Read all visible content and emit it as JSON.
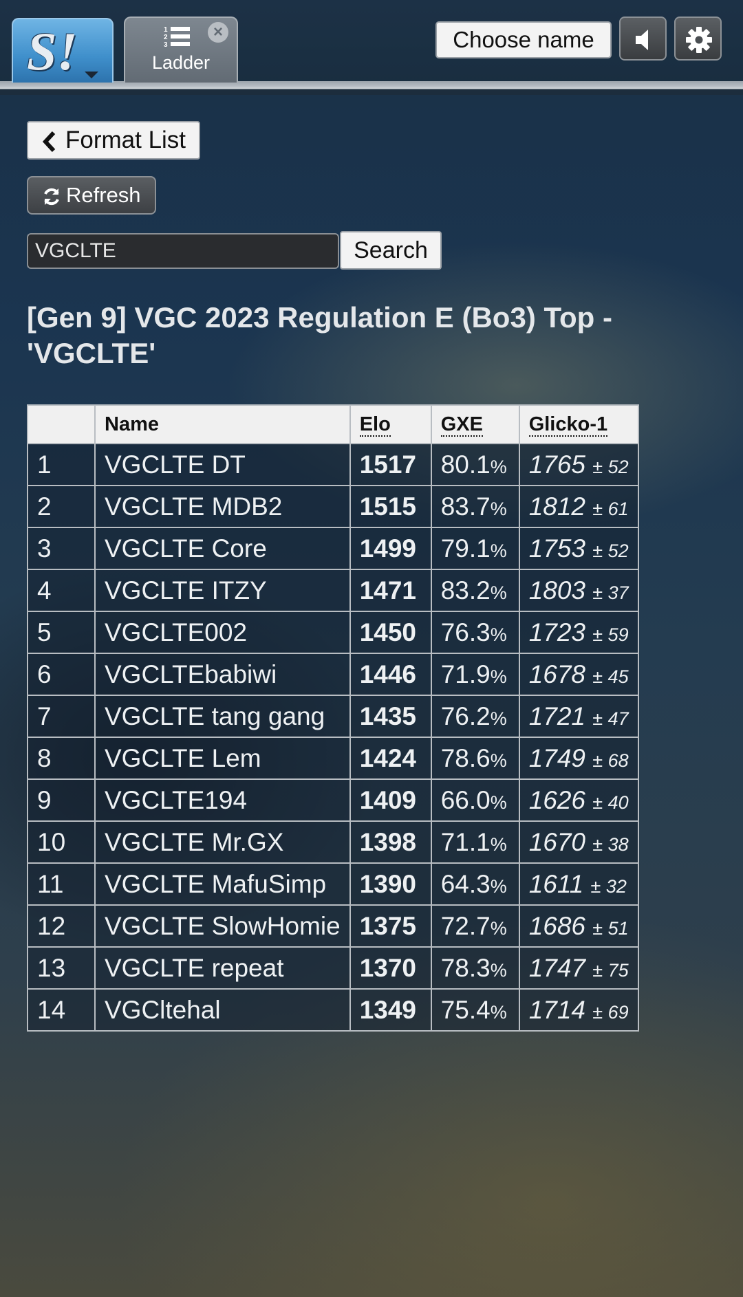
{
  "header": {
    "logo_text": "S!",
    "tab_label": "Ladder",
    "choose_name_label": "Choose name",
    "icons": [
      "sound-icon",
      "gear-icon",
      "list-icon",
      "close-icon"
    ]
  },
  "nav": {
    "format_list_label": "Format List",
    "refresh_label": "Refresh"
  },
  "search": {
    "value": "VGCLTE",
    "button_label": "Search"
  },
  "ladder": {
    "title": "[Gen 9] VGC 2023 Regulation E (Bo3) Top - 'VGCLTE'",
    "columns": [
      "",
      "Name",
      "Elo",
      "GXE",
      "Glicko-1"
    ],
    "rows": [
      {
        "rank": "1",
        "name": "VGCLTE DT",
        "elo": "1517",
        "gxe": "80.1",
        "glicko": "1765",
        "dev": "± 52"
      },
      {
        "rank": "2",
        "name": "VGCLTE MDB2",
        "elo": "1515",
        "gxe": "83.7",
        "glicko": "1812",
        "dev": "± 61"
      },
      {
        "rank": "3",
        "name": "VGCLTE Core",
        "elo": "1499",
        "gxe": "79.1",
        "glicko": "1753",
        "dev": "± 52"
      },
      {
        "rank": "4",
        "name": "VGCLTE ITZY",
        "elo": "1471",
        "gxe": "83.2",
        "glicko": "1803",
        "dev": "± 37"
      },
      {
        "rank": "5",
        "name": "VGCLTE002",
        "elo": "1450",
        "gxe": "76.3",
        "glicko": "1723",
        "dev": "± 59"
      },
      {
        "rank": "6",
        "name": "VGCLTEbabiwi",
        "elo": "1446",
        "gxe": "71.9",
        "glicko": "1678",
        "dev": "± 45"
      },
      {
        "rank": "7",
        "name": "VGCLTE tang gang",
        "elo": "1435",
        "gxe": "76.2",
        "glicko": "1721",
        "dev": "± 47"
      },
      {
        "rank": "8",
        "name": "VGCLTE Lem",
        "elo": "1424",
        "gxe": "78.6",
        "glicko": "1749",
        "dev": "± 68"
      },
      {
        "rank": "9",
        "name": "VGCLTE194",
        "elo": "1409",
        "gxe": "66.0",
        "glicko": "1626",
        "dev": "± 40"
      },
      {
        "rank": "10",
        "name": "VGCLTE Mr.GX",
        "elo": "1398",
        "gxe": "71.1",
        "glicko": "1670",
        "dev": "± 38"
      },
      {
        "rank": "11",
        "name": "VGCLTE MafuSimp",
        "elo": "1390",
        "gxe": "64.3",
        "glicko": "1611",
        "dev": "± 32"
      },
      {
        "rank": "12",
        "name": "VGCLTE SlowHomie",
        "elo": "1375",
        "gxe": "72.7",
        "glicko": "1686",
        "dev": "± 51"
      },
      {
        "rank": "13",
        "name": "VGCLTE repeat",
        "elo": "1370",
        "gxe": "78.3",
        "glicko": "1747",
        "dev": "± 75"
      },
      {
        "rank": "14",
        "name": "VGCltehal",
        "elo": "1349",
        "gxe": "75.4",
        "glicko": "1714",
        "dev": "± 69"
      }
    ],
    "gxe_unit": "%"
  }
}
